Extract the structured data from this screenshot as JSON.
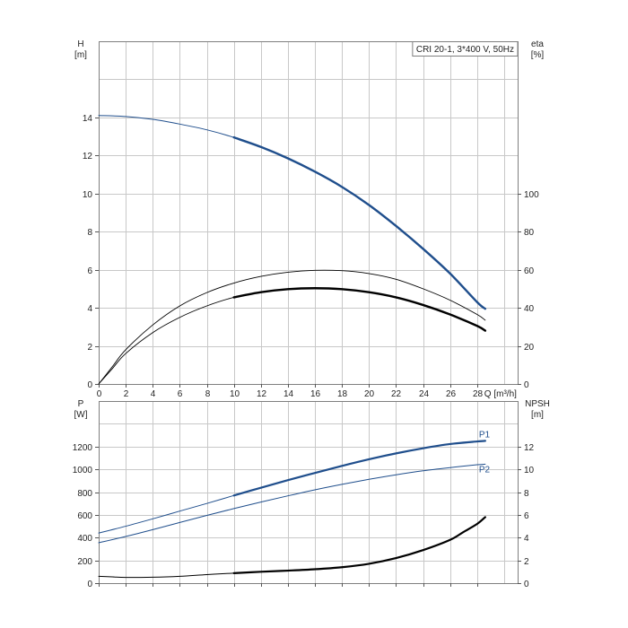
{
  "chart_data": [
    {
      "type": "line",
      "title": "CRI 20-1, 3*400 V, 50Hz",
      "xlabel": "Q [m³/h]",
      "xlim": [
        0,
        31
      ],
      "x_ticks": [
        0,
        2,
        4,
        6,
        8,
        10,
        12,
        14,
        16,
        18,
        20,
        22,
        24,
        26,
        28
      ],
      "left_axis": {
        "label_line1": "H",
        "label_line2": "[m]",
        "ylim": [
          0,
          18
        ],
        "ticks": [
          0,
          2,
          4,
          6,
          8,
          10,
          12,
          14
        ]
      },
      "right_axis": {
        "label_line1": "eta",
        "label_line2": "[%]",
        "ylim": [
          0,
          180
        ],
        "ticks": [
          0,
          20,
          40,
          60,
          80,
          100
        ]
      },
      "grid": true,
      "series": [
        {
          "axis": "left",
          "color": "#1f4e8c",
          "width_thin": 1,
          "width_thick": 2.4,
          "thick_from": 10.3,
          "x": [
            0,
            2,
            4,
            6,
            8,
            10,
            12,
            14,
            16,
            18,
            20,
            22,
            24,
            26,
            28,
            28.6
          ],
          "y": [
            14.1,
            14.05,
            13.9,
            13.65,
            13.35,
            12.95,
            12.45,
            11.85,
            11.15,
            10.35,
            9.4,
            8.3,
            7.1,
            5.8,
            4.3,
            3.95
          ]
        },
        {
          "axis": "right",
          "color": "#000000",
          "width_thin": 0.9,
          "width_thick": 0.9,
          "thick_from": 999,
          "x": [
            0,
            1,
            2,
            4,
            6,
            8,
            10,
            12,
            14,
            16,
            18,
            20,
            22,
            24,
            26,
            28,
            28.6
          ],
          "y": [
            0,
            9,
            18,
            31,
            41,
            48,
            53,
            56.5,
            58.7,
            59.7,
            59.5,
            58,
            55,
            50,
            44,
            36.5,
            33.5
          ]
        },
        {
          "axis": "right",
          "color": "#000000",
          "width_thin": 0.9,
          "width_thick": 2.4,
          "thick_from": 10.3,
          "x": [
            0,
            1,
            2,
            4,
            6,
            8,
            10,
            12,
            14,
            16,
            18,
            20,
            22,
            24,
            26,
            28,
            28.6
          ],
          "y": [
            0,
            8,
            16,
            27,
            35,
            41,
            45.5,
            48.2,
            49.8,
            50.3,
            49.8,
            48.2,
            45.5,
            41.5,
            36.5,
            30.5,
            28
          ]
        }
      ]
    },
    {
      "type": "line",
      "xlim": [
        0,
        31
      ],
      "left_axis": {
        "label_line1": "P",
        "label_line2": "[W]",
        "ylim": [
          0,
          1600
        ],
        "ticks": [
          0,
          200,
          400,
          600,
          800,
          1000,
          1200
        ]
      },
      "right_axis": {
        "label_line1": "NPSH",
        "label_line2": "[m]",
        "ylim": [
          0,
          16
        ],
        "ticks": [
          0,
          2,
          4,
          6,
          8,
          10,
          12
        ]
      },
      "grid": true,
      "series": [
        {
          "name": "P1",
          "axis": "left",
          "color": "#1f4e8c",
          "width_thin": 1,
          "width_thick": 2.2,
          "thick_from": 10.3,
          "x": [
            0,
            2,
            4,
            6,
            8,
            10,
            12,
            14,
            16,
            18,
            20,
            22,
            24,
            26,
            28,
            28.6
          ],
          "y": [
            440,
            500,
            565,
            633,
            700,
            770,
            838,
            905,
            968,
            1030,
            1088,
            1140,
            1185,
            1222,
            1245,
            1250
          ]
        },
        {
          "name": "P2",
          "axis": "left",
          "color": "#1f4e8c",
          "width_thin": 1,
          "width_thick": 1,
          "thick_from": 999,
          "x": [
            0,
            2,
            4,
            6,
            8,
            10,
            12,
            14,
            16,
            18,
            20,
            22,
            24,
            26,
            28,
            28.6
          ],
          "y": [
            355,
            410,
            470,
            533,
            595,
            655,
            712,
            767,
            820,
            868,
            912,
            952,
            987,
            1015,
            1040,
            1045
          ]
        },
        {
          "axis": "right",
          "color": "#000000",
          "width_thin": 1,
          "width_thick": 2.2,
          "thick_from": 10.3,
          "x": [
            0,
            1,
            2,
            4,
            6,
            8,
            10,
            12,
            14,
            16,
            18,
            20,
            22,
            24,
            26,
            27,
            28,
            28.6
          ],
          "y": [
            0.6,
            0.55,
            0.5,
            0.52,
            0.6,
            0.75,
            0.88,
            1.0,
            1.1,
            1.22,
            1.4,
            1.7,
            2.2,
            2.9,
            3.8,
            4.5,
            5.2,
            5.8
          ]
        }
      ]
    }
  ]
}
